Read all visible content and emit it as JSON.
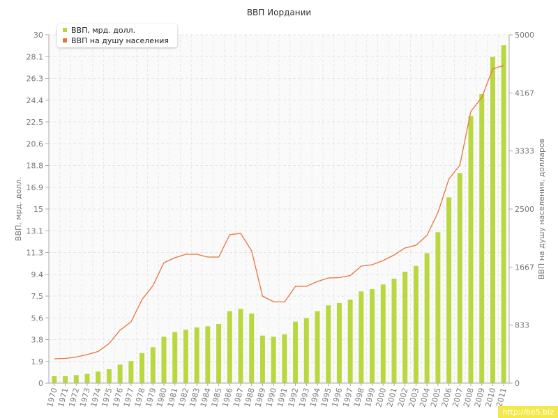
{
  "chart_data": {
    "type": "bar+line",
    "title": "ВВП Иордании",
    "ylabel": "ВВП, мрд. долл.",
    "y2label": "ВВП на душу населения, долларов",
    "categories": [
      "1970",
      "1971",
      "1972",
      "1973",
      "1974",
      "1975",
      "1976",
      "1977",
      "1978",
      "1979",
      "1980",
      "1981",
      "1982",
      "1983",
      "1984",
      "1985",
      "1986",
      "1987",
      "1988",
      "1989",
      "1990",
      "1991",
      "1992",
      "1993",
      "1994",
      "1995",
      "1996",
      "1997",
      "1998",
      "1999",
      "2000",
      "2001",
      "2002",
      "2003",
      "2004",
      "2005",
      "2006",
      "2007",
      "2008",
      "2009",
      "2010",
      "2011"
    ],
    "series": [
      {
        "name": "ВВП, мрд. долл.",
        "type": "bar",
        "axis": "left",
        "color": "#b9d83f",
        "values": [
          0.6,
          0.6,
          0.7,
          0.8,
          1.0,
          1.2,
          1.6,
          1.9,
          2.6,
          3.1,
          4.0,
          4.4,
          4.6,
          4.8,
          4.9,
          5.1,
          6.2,
          6.4,
          6.0,
          4.1,
          4.0,
          4.2,
          5.3,
          5.6,
          6.2,
          6.7,
          6.9,
          7.2,
          7.9,
          8.1,
          8.5,
          9.0,
          9.6,
          10.1,
          11.2,
          13.0,
          16.0,
          18.1,
          23.0,
          24.9,
          28.1,
          29.1
        ]
      },
      {
        "name": "ВВП на душу населения",
        "type": "line",
        "axis": "right",
        "color": "#e8733a",
        "values": [
          350,
          355,
          375,
          410,
          455,
          570,
          760,
          880,
          1200,
          1400,
          1730,
          1800,
          1850,
          1850,
          1810,
          1810,
          2130,
          2150,
          1900,
          1250,
          1170,
          1165,
          1390,
          1390,
          1460,
          1510,
          1515,
          1545,
          1680,
          1700,
          1760,
          1840,
          1940,
          1980,
          2120,
          2450,
          2930,
          3130,
          3900,
          4100,
          4510,
          4560
        ]
      }
    ],
    "yticks": [
      "0",
      "1.9",
      "3.8",
      "5.6",
      "7.5",
      "9.4",
      "11.3",
      "13.1",
      "15",
      "16.9",
      "18.8",
      "20.6",
      "22.5",
      "24.4",
      "26.3",
      "28.1",
      "30"
    ],
    "y2ticks": [
      "0",
      "833",
      "1667",
      "2500",
      "3333",
      "4167",
      "5000"
    ],
    "ylim": [
      0,
      30
    ],
    "y2lim": [
      0,
      5000
    ],
    "legend_position": "top-left",
    "grid": true
  },
  "watermark": "http://be5.biz"
}
